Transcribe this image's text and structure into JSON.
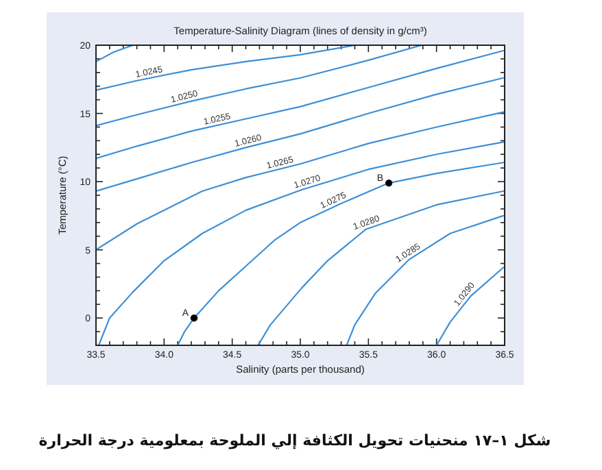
{
  "chart_data": {
    "type": "line",
    "title": "Temperature-Salinity Diagram (lines of density in g/cm³)",
    "xlabel": "Salinity (parts per thousand)",
    "ylabel": "Temperature (°C)",
    "xlim": [
      33.5,
      36.5
    ],
    "ylim": [
      -2,
      20
    ],
    "xticks": [
      33.5,
      {
        "value": 33.6,
        "label": null
      },
      {
        "value": 33.7,
        "label": null
      },
      {
        "value": 33.8,
        "label": null
      },
      {
        "value": 33.9,
        "label": null
      },
      {
        "value": 34,
        "label": "34.0"
      },
      {
        "value": 34.1,
        "label": null
      },
      {
        "value": 34.2,
        "label": null
      },
      {
        "value": 34.3,
        "label": null
      },
      {
        "value": 34.4,
        "label": null
      },
      34.5,
      {
        "value": 34.6,
        "label": null
      },
      {
        "value": 34.7,
        "label": null
      },
      {
        "value": 34.8,
        "label": null
      },
      {
        "value": 34.9,
        "label": null
      },
      {
        "value": 35,
        "label": "35.0"
      },
      {
        "value": 35.1,
        "label": null
      },
      {
        "value": 35.2,
        "label": null
      },
      {
        "value": 35.3,
        "label": null
      },
      {
        "value": 35.4,
        "label": null
      },
      35.5,
      {
        "value": 35.6,
        "label": null
      },
      {
        "value": 35.7,
        "label": null
      },
      {
        "value": 35.8,
        "label": null
      },
      {
        "value": 35.9,
        "label": null
      },
      {
        "value": 36,
        "label": "36.0"
      },
      {
        "value": 36.1,
        "label": null
      },
      {
        "value": 36.2,
        "label": null
      },
      {
        "value": 36.3,
        "label": null
      },
      {
        "value": 36.4,
        "label": null
      },
      36.5
    ],
    "yticks": [
      {
        "value": -2,
        "label": null
      },
      {
        "value": -1,
        "label": null
      },
      0,
      {
        "value": 1,
        "label": null
      },
      {
        "value": 2,
        "label": null
      },
      {
        "value": 3,
        "label": null
      },
      {
        "value": 4,
        "label": null
      },
      5,
      {
        "value": 6,
        "label": null
      },
      {
        "value": 7,
        "label": null
      },
      {
        "value": 8,
        "label": null
      },
      {
        "value": 9,
        "label": null
      },
      10,
      {
        "value": 11,
        "label": null
      },
      {
        "value": 12,
        "label": null
      },
      {
        "value": 13,
        "label": null
      },
      {
        "value": 14,
        "label": null
      },
      15,
      {
        "value": 16,
        "label": null
      },
      {
        "value": 17,
        "label": null
      },
      {
        "value": 18,
        "label": null
      },
      {
        "value": 19,
        "label": null
      },
      20
    ],
    "grid": false,
    "legend": false,
    "marker": "none",
    "line_style": "solid",
    "series": [
      {
        "type": "line",
        "color": "#3d8fd6",
        "x": [
          33.5,
          33.63,
          33.77
        ],
        "values": [
          18.8,
          19.5,
          20
        ]
      },
      {
        "type": "line",
        "name": "1.0245",
        "color": "#3d8fd6",
        "x": [
          33.5,
          33.8,
          34.2,
          34.6,
          35.0,
          35.4
        ],
        "values": [
          16.7,
          17.4,
          18.2,
          18.8,
          19.3,
          20
        ]
      },
      {
        "type": "line",
        "name": "1.0250",
        "color": "#3d8fd6",
        "x": [
          33.5,
          33.8,
          34.2,
          34.6,
          35.0,
          35.5,
          35.89
        ],
        "values": [
          14.1,
          14.9,
          15.9,
          16.8,
          17.6,
          18.9,
          20
        ]
      },
      {
        "type": "line",
        "name": "1.0255",
        "color": "#3d8fd6",
        "x": [
          33.5,
          33.8,
          34.2,
          34.6,
          35.0,
          35.5,
          36.0,
          36.49
        ],
        "values": [
          11.7,
          12.6,
          13.7,
          14.6,
          15.5,
          16.9,
          18.3,
          19.6
        ]
      },
      {
        "type": "line",
        "name": "1.0260",
        "color": "#3d8fd6",
        "x": [
          33.5,
          33.8,
          34.2,
          34.6,
          35.0,
          35.5,
          36.0,
          36.49
        ],
        "values": [
          9.3,
          10.2,
          11.4,
          12.5,
          13.5,
          15.0,
          16.4,
          17.6
        ]
      },
      {
        "type": "line",
        "name": "1.0265",
        "color": "#3d8fd6",
        "x": [
          33.5,
          33.8,
          34.28,
          34.6,
          35.0,
          35.5,
          36.0,
          36.49
        ],
        "values": [
          5.0,
          6.9,
          9.3,
          10.3,
          11.3,
          12.8,
          14.0,
          15.1
        ]
      },
      {
        "type": "line",
        "name": "1.0270",
        "color": "#3d8fd6",
        "x": [
          33.52,
          33.6,
          33.77,
          34.0,
          34.28,
          34.6,
          35.01,
          35.5,
          36.0,
          36.49
        ],
        "values": [
          -2,
          0,
          1.9,
          4.2,
          6.2,
          7.9,
          9.4,
          10.9,
          12.0,
          12.9
        ]
      },
      {
        "type": "line",
        "name": "1.0275",
        "color": "#3d8fd6",
        "x": [
          34.1,
          34.15,
          34.22,
          34.4,
          34.6,
          34.81,
          35.0,
          35.3,
          35.65,
          36.0,
          36.49
        ],
        "values": [
          -2,
          -1,
          0,
          2.0,
          3.8,
          5.7,
          7.0,
          8.4,
          9.9,
          10.6,
          11.4
        ]
      },
      {
        "type": "line",
        "name": "1.0280",
        "color": "#3d8fd6",
        "x": [
          34.69,
          34.78,
          35.01,
          35.2,
          35.48,
          36.0,
          36.49
        ],
        "values": [
          -2,
          -0.5,
          2.2,
          4.2,
          6.5,
          8.3,
          9.3
        ]
      },
      {
        "type": "line",
        "name": "1.0285",
        "color": "#3d8fd6",
        "x": [
          35.34,
          35.4,
          35.55,
          35.8,
          36.1,
          36.49
        ],
        "values": [
          -2,
          -0.5,
          1.8,
          4.3,
          6.2,
          7.5
        ]
      },
      {
        "type": "line",
        "name": "1.0290",
        "color": "#3d8fd6",
        "x": [
          36.0,
          36.1,
          36.25,
          36.49
        ],
        "values": [
          -2,
          -0.3,
          1.6,
          3.7
        ]
      },
      {
        "type": "scatter",
        "color": "#000000",
        "marker": "circle",
        "x": [
          34.22,
          35.65
        ],
        "values": [
          0,
          9.9
        ]
      }
    ],
    "annotations": [
      {
        "text": "A",
        "x": 34.22,
        "y": 0
      },
      {
        "text": "B",
        "x": 35.65,
        "y": 9.9
      },
      "شكل ١–١٧ منحنيات تحويل الكثافة إلي الملوحة بمعلومية درجة الحرارة"
    ]
  }
}
